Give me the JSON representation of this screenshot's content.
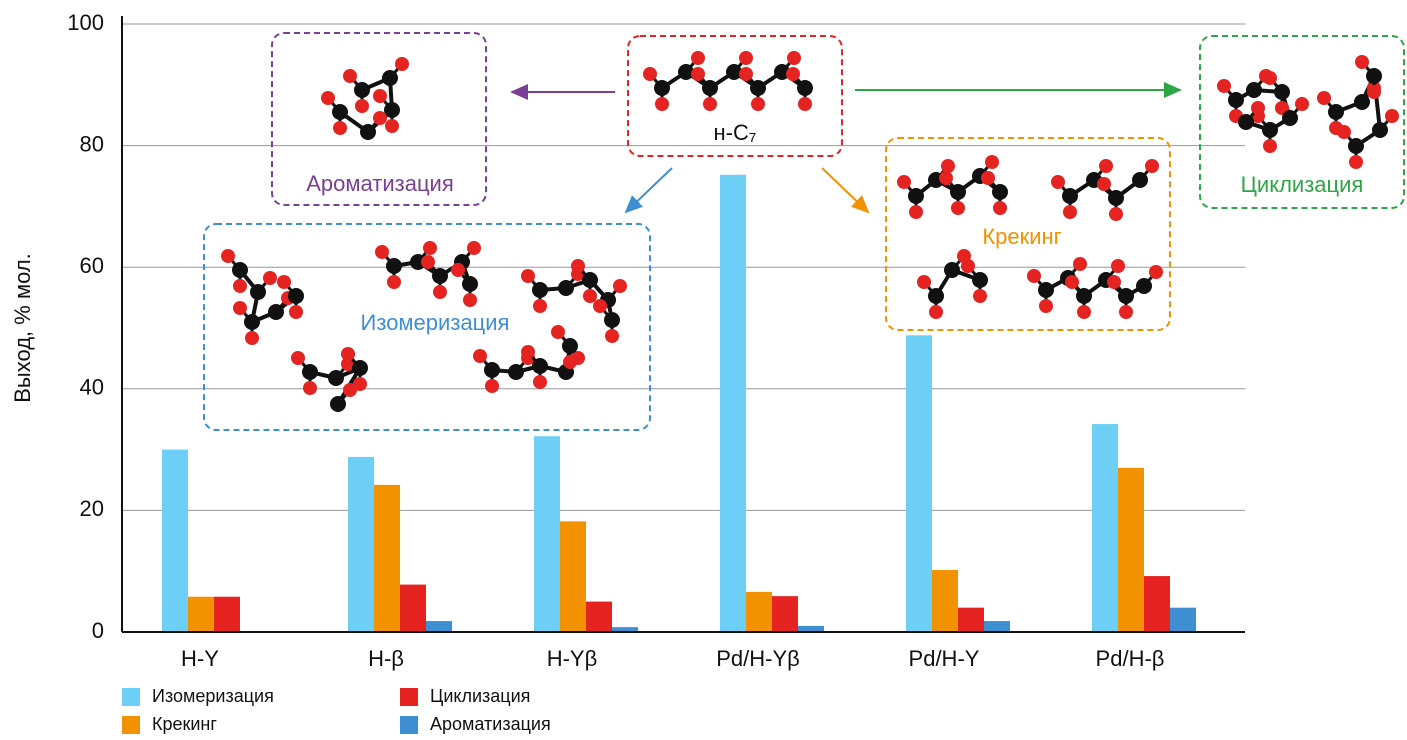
{
  "chart_data": {
    "type": "bar",
    "y_label": "Выход, % мол.",
    "categories": [
      "H-Y",
      "H-β",
      "H-Yβ",
      "Pd/H-Yβ",
      "Pd/H-Y",
      "Pd/H-β"
    ],
    "series": [
      {
        "name": "Изомеризация",
        "color": "#6dcff6",
        "values": [
          30,
          28.8,
          32.2,
          75.2,
          48.8,
          34.2
        ]
      },
      {
        "name": "Крекинг",
        "color": "#f39200",
        "values": [
          5.8,
          24.2,
          18.2,
          6.6,
          10.2,
          27
        ]
      },
      {
        "name": "Циклизация",
        "color": "#e52421",
        "values": [
          5.8,
          7.8,
          5,
          5.9,
          4,
          9.2
        ]
      },
      {
        "name": "Ароматизация",
        "color": "#3d8fd1",
        "values": [
          0,
          1.8,
          0.8,
          1,
          1.8,
          4
        ]
      }
    ],
    "ylim": [
      0,
      100
    ],
    "yticks": [
      0,
      20,
      40,
      60,
      80,
      100
    ],
    "grid": true,
    "annotations": [
      "Ароматизация",
      "н-C₇",
      "Изомеризация",
      "Крекинг",
      "Циклизация"
    ]
  }
}
